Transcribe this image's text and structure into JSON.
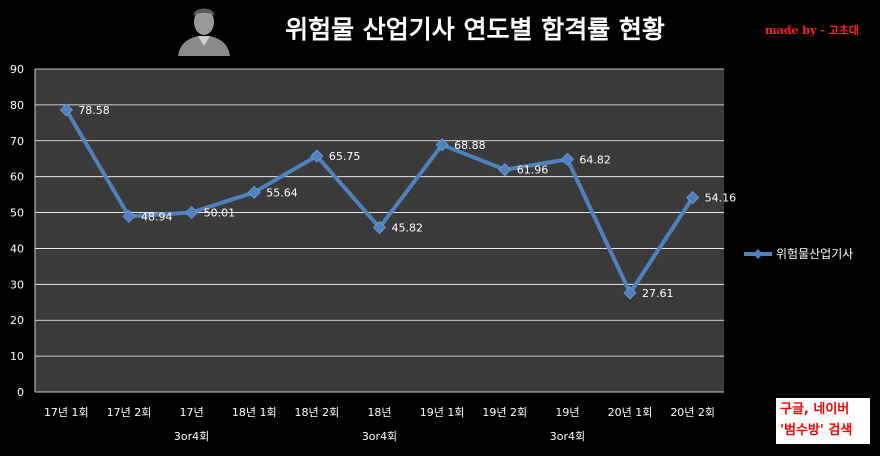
{
  "header": {
    "title": "위험물 산업기사 연도별 합격률 현황",
    "credit": "made by - 고초대",
    "avatar_icon": "person-silhouette-icon"
  },
  "note": {
    "line1": "구글, 네이버",
    "line2": "'범수방' 검색"
  },
  "chart_data": {
    "type": "line",
    "title": "위험물 산업기사 연도별 합격률 현황",
    "categories": [
      [
        "17년 1회"
      ],
      [
        "17년 2회"
      ],
      [
        "17년",
        "3or4회"
      ],
      [
        "18년 1회"
      ],
      [
        "18년 2회"
      ],
      [
        "18년",
        "3or4회"
      ],
      [
        "19년 1회"
      ],
      [
        "19년 2회"
      ],
      [
        "19년",
        "3or4회"
      ],
      [
        "20년 1회"
      ],
      [
        "20년 2회"
      ]
    ],
    "series": [
      {
        "name": "위험물산업기사",
        "values": [
          78.58,
          48.94,
          50.01,
          55.64,
          65.75,
          45.82,
          68.88,
          61.96,
          64.82,
          27.61,
          54.16
        ],
        "labels": [
          "78.58",
          "48.94",
          "50.01",
          "55.64",
          "65.75",
          "45.82",
          "68.88",
          "61.96",
          "64.82",
          "27.61",
          "54.16"
        ],
        "color": "#4f81bd"
      }
    ],
    "ylim": [
      0,
      90
    ],
    "yticks": [
      "0",
      "10",
      "20",
      "30",
      "40",
      "50",
      "60",
      "70",
      "80",
      "90"
    ],
    "grid": true,
    "legend_position": "right",
    "plot_background": "#3a3a3a"
  }
}
